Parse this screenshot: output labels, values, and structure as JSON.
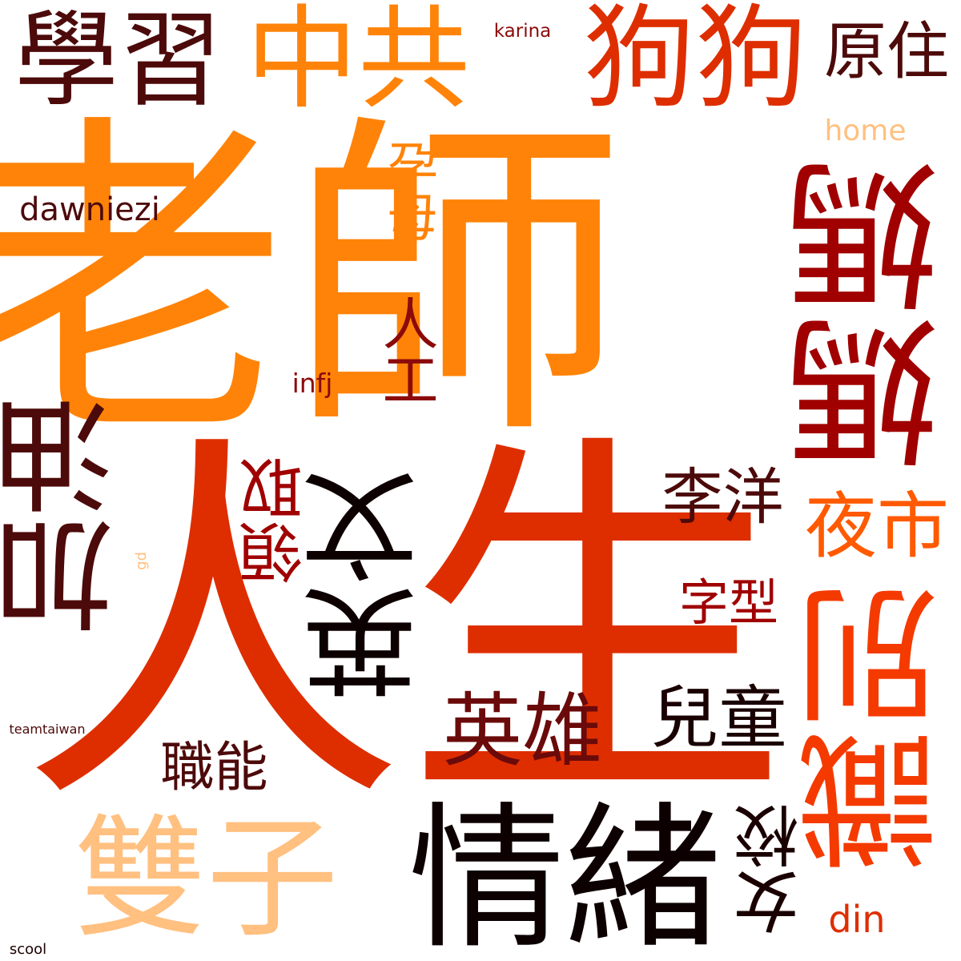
{
  "words": {
    "laoshi": {
      "text": "老師",
      "color": "#FF8308",
      "orientation": "horizontal"
    },
    "rensheng": {
      "text": "人生",
      "color": "#DE2E00",
      "orientation": "horizontal"
    },
    "xuexi": {
      "text": "學習",
      "color": "#4D0A0A",
      "orientation": "horizontal"
    },
    "zhonggong": {
      "text": "中共",
      "color": "#FF8308",
      "orientation": "horizontal"
    },
    "gougou": {
      "text": "狗狗",
      "color": "#DE2E00",
      "orientation": "horizontal"
    },
    "yuanzhu": {
      "text": "原住",
      "color": "#4D0A0A",
      "orientation": "horizontal"
    },
    "karina": {
      "text": "karina",
      "color": "#8B0A0A",
      "orientation": "horizontal"
    },
    "home": {
      "text": "home",
      "color": "#FFC080",
      "orientation": "horizontal"
    },
    "dawniezi": {
      "text": "dawniezi",
      "color": "#4D0A0A",
      "orientation": "horizontal"
    },
    "yunmu": {
      "text": "孕母",
      "color": "#FF8308",
      "orientation": "vertical"
    },
    "rengong": {
      "text": "人工",
      "color": "#8B0A0A",
      "orientation": "vertical"
    },
    "infj": {
      "text": "infj",
      "color": "#8B0A0A",
      "orientation": "horizontal"
    },
    "mama": {
      "text": "媽媽",
      "color": "#A00000",
      "orientation": "vertical-flipped"
    },
    "jiayou": {
      "text": "加油",
      "color": "#4D0A0A",
      "orientation": "vertical-flipped"
    },
    "yingwen": {
      "text": "英文",
      "color": "#0D0000",
      "orientation": "vertical-flipped"
    },
    "lingqu": {
      "text": "領取",
      "color": "#A00000",
      "orientation": "vertical-flipped"
    },
    "liyang": {
      "text": "李洋",
      "color": "#4D0A0A",
      "orientation": "horizontal"
    },
    "yeshi": {
      "text": "夜市",
      "color": "#FF5A00",
      "orientation": "horizontal"
    },
    "zixing": {
      "text": "字型",
      "color": "#A00000",
      "orientation": "horizontal"
    },
    "shibie": {
      "text": "識別",
      "color": "#F53A00",
      "orientation": "vertical-flipped"
    },
    "yingxiong": {
      "text": "英雄",
      "color": "#6B0A0A",
      "orientation": "horizontal"
    },
    "ertong": {
      "text": "兒童",
      "color": "#1A0000",
      "orientation": "horizontal"
    },
    "zhineng": {
      "text": "職能",
      "color": "#4D0A0A",
      "orientation": "horizontal"
    },
    "teamtw": {
      "text": "teamtaiwan",
      "color": "#4D0A0A",
      "orientation": "horizontal"
    },
    "gd": {
      "text": "gd",
      "color": "#FFC080",
      "orientation": "vertical-flipped"
    },
    "shuangzi": {
      "text": "雙子",
      "color": "#FFC080",
      "orientation": "horizontal"
    },
    "qingxu": {
      "text": "情緒",
      "color": "#0D0000",
      "orientation": "horizontal"
    },
    "nvxiao": {
      "text": "女校",
      "color": "#1A0000",
      "orientation": "vertical-flipped"
    },
    "din": {
      "text": "din",
      "color": "#DE2E00",
      "orientation": "horizontal"
    },
    "scool": {
      "text": "scool",
      "color": "#1A0000",
      "orientation": "horizontal"
    }
  }
}
